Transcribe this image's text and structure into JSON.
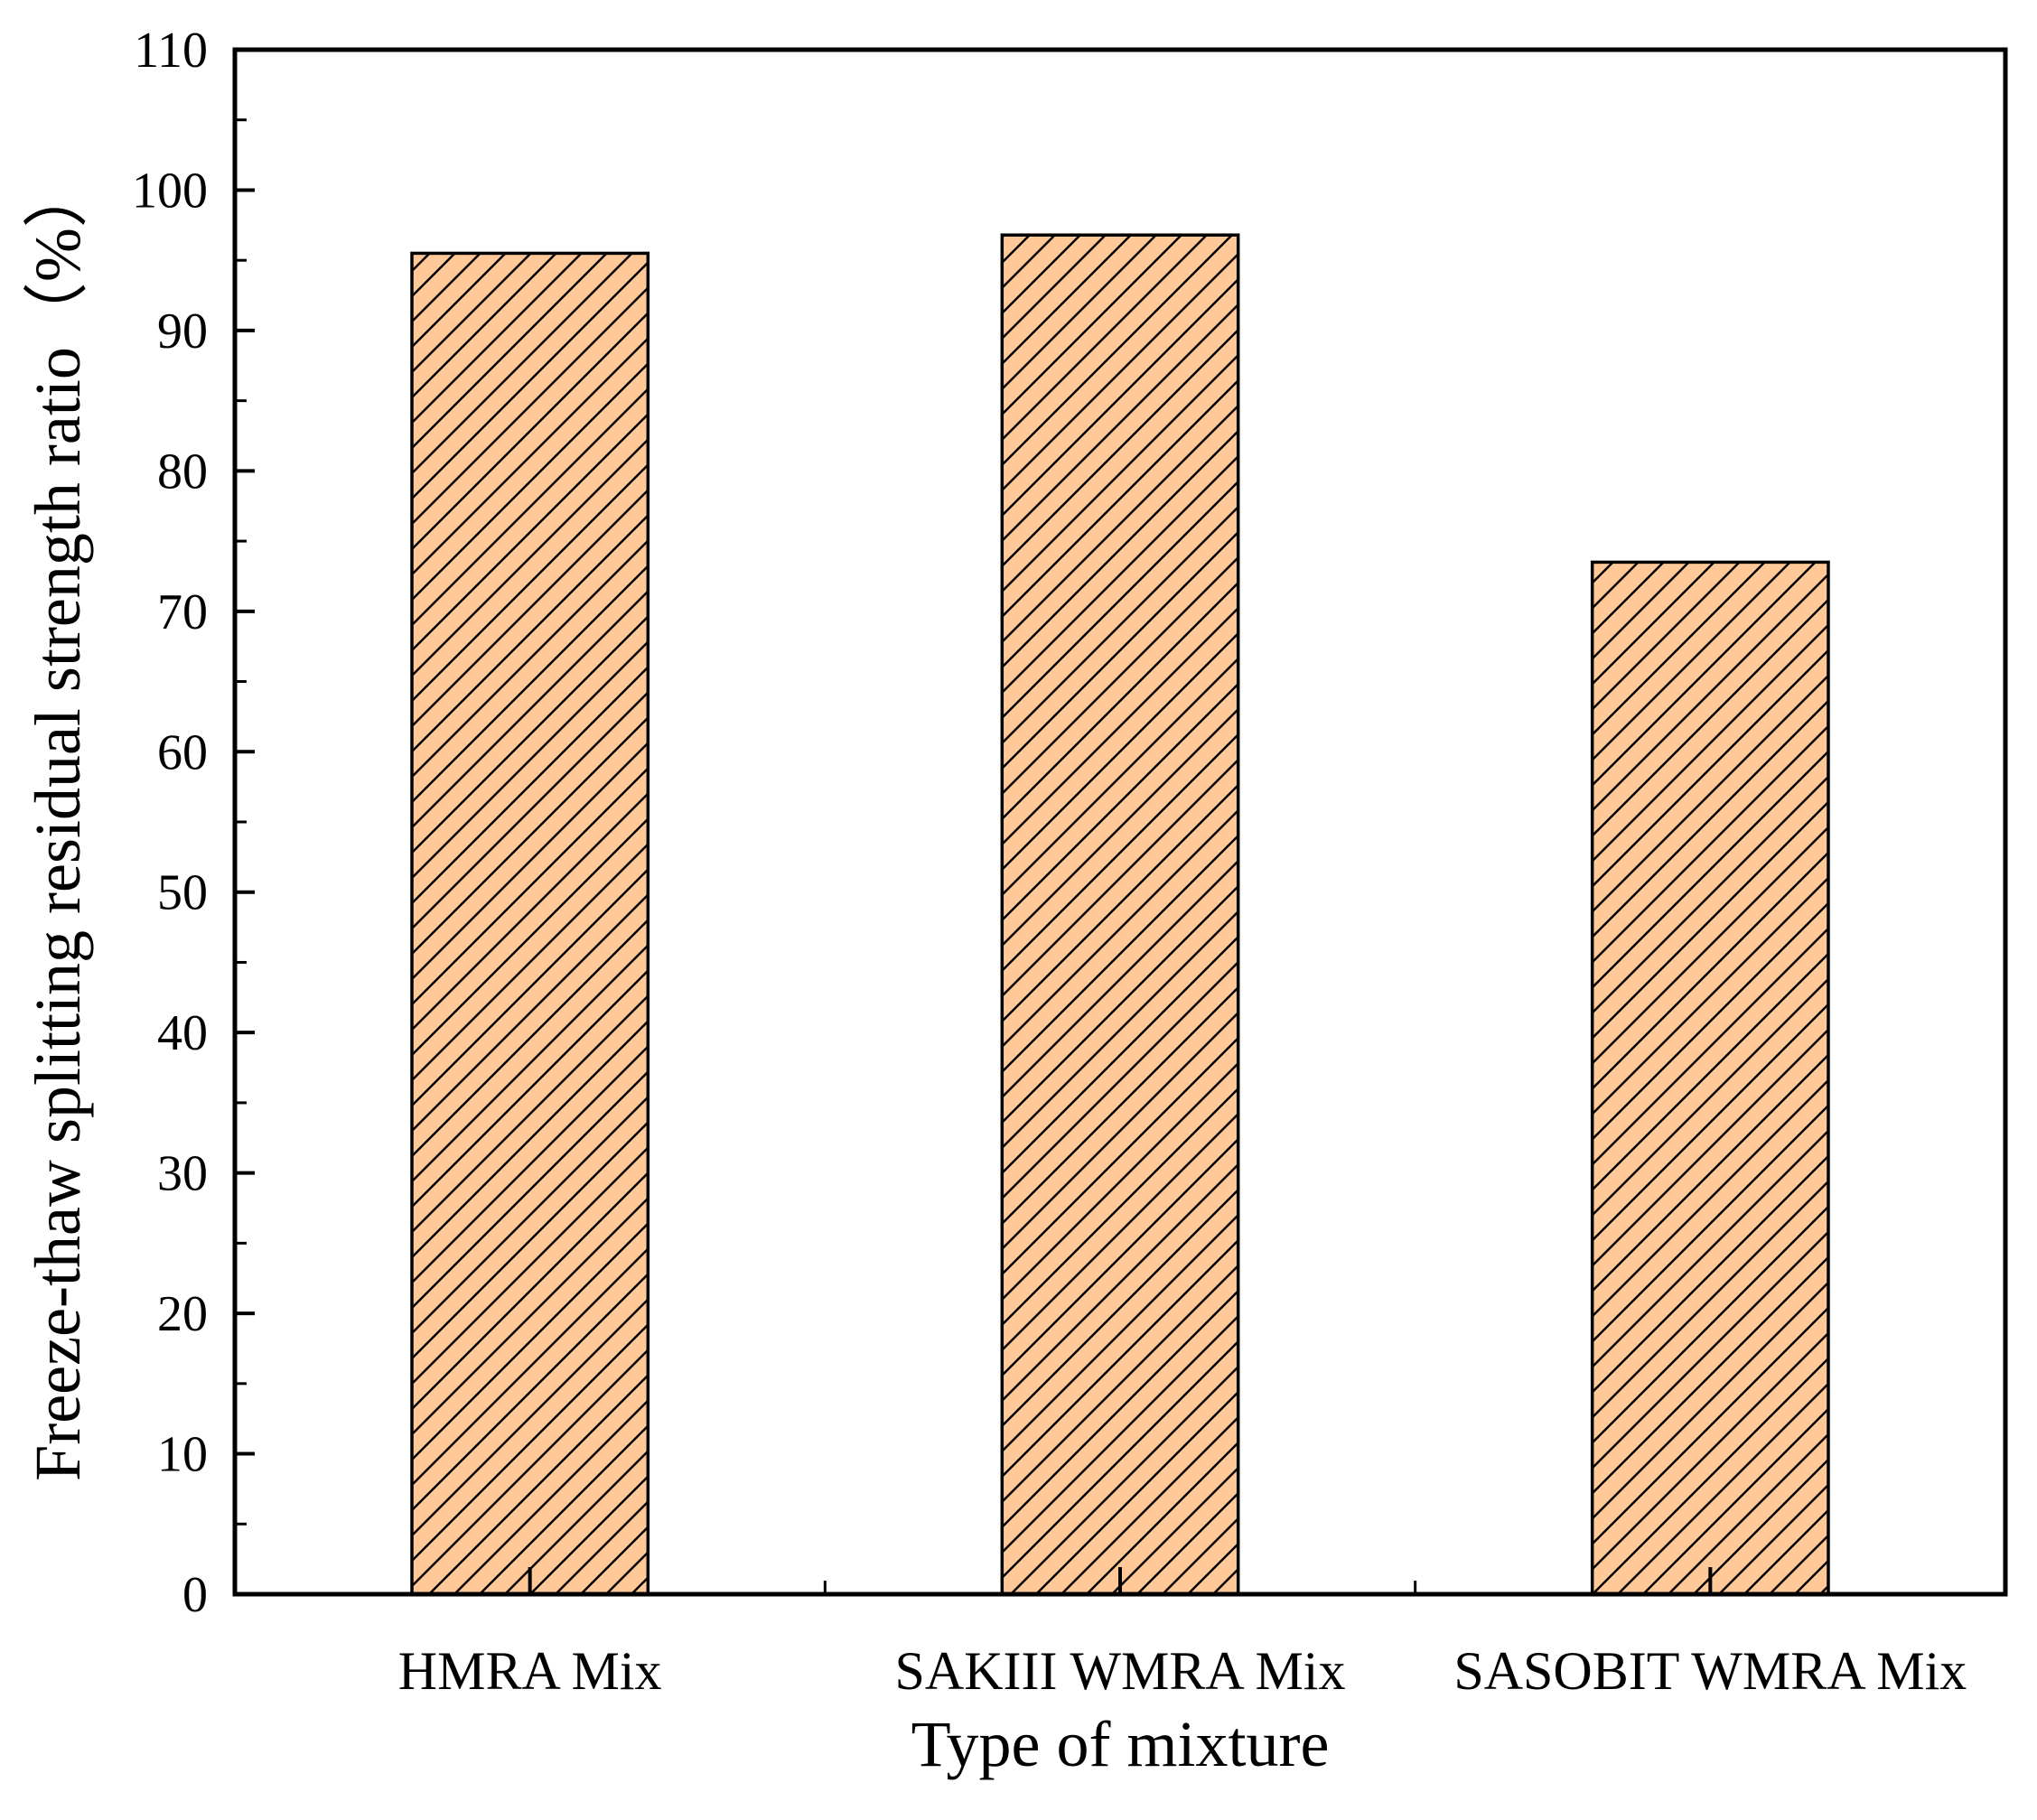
{
  "chart_data": {
    "type": "bar",
    "categories": [
      "HMRA Mix",
      "SAKIII WMRA Mix",
      "SASOBIT WMRA Mix"
    ],
    "values": [
      95.5,
      96.8,
      73.5
    ],
    "xlabel": "Type of mixture",
    "ylabel": "Freeze-thaw splitting residual strength ratio（%）",
    "ylim": [
      0,
      110
    ],
    "yticks": [
      0,
      10,
      20,
      30,
      40,
      50,
      60,
      70,
      80,
      90,
      100,
      110
    ],
    "grid": false,
    "legend": "none",
    "bar_fill": "#FFC896",
    "bar_hatch": "diagonal",
    "bar_edge": "#000000"
  }
}
